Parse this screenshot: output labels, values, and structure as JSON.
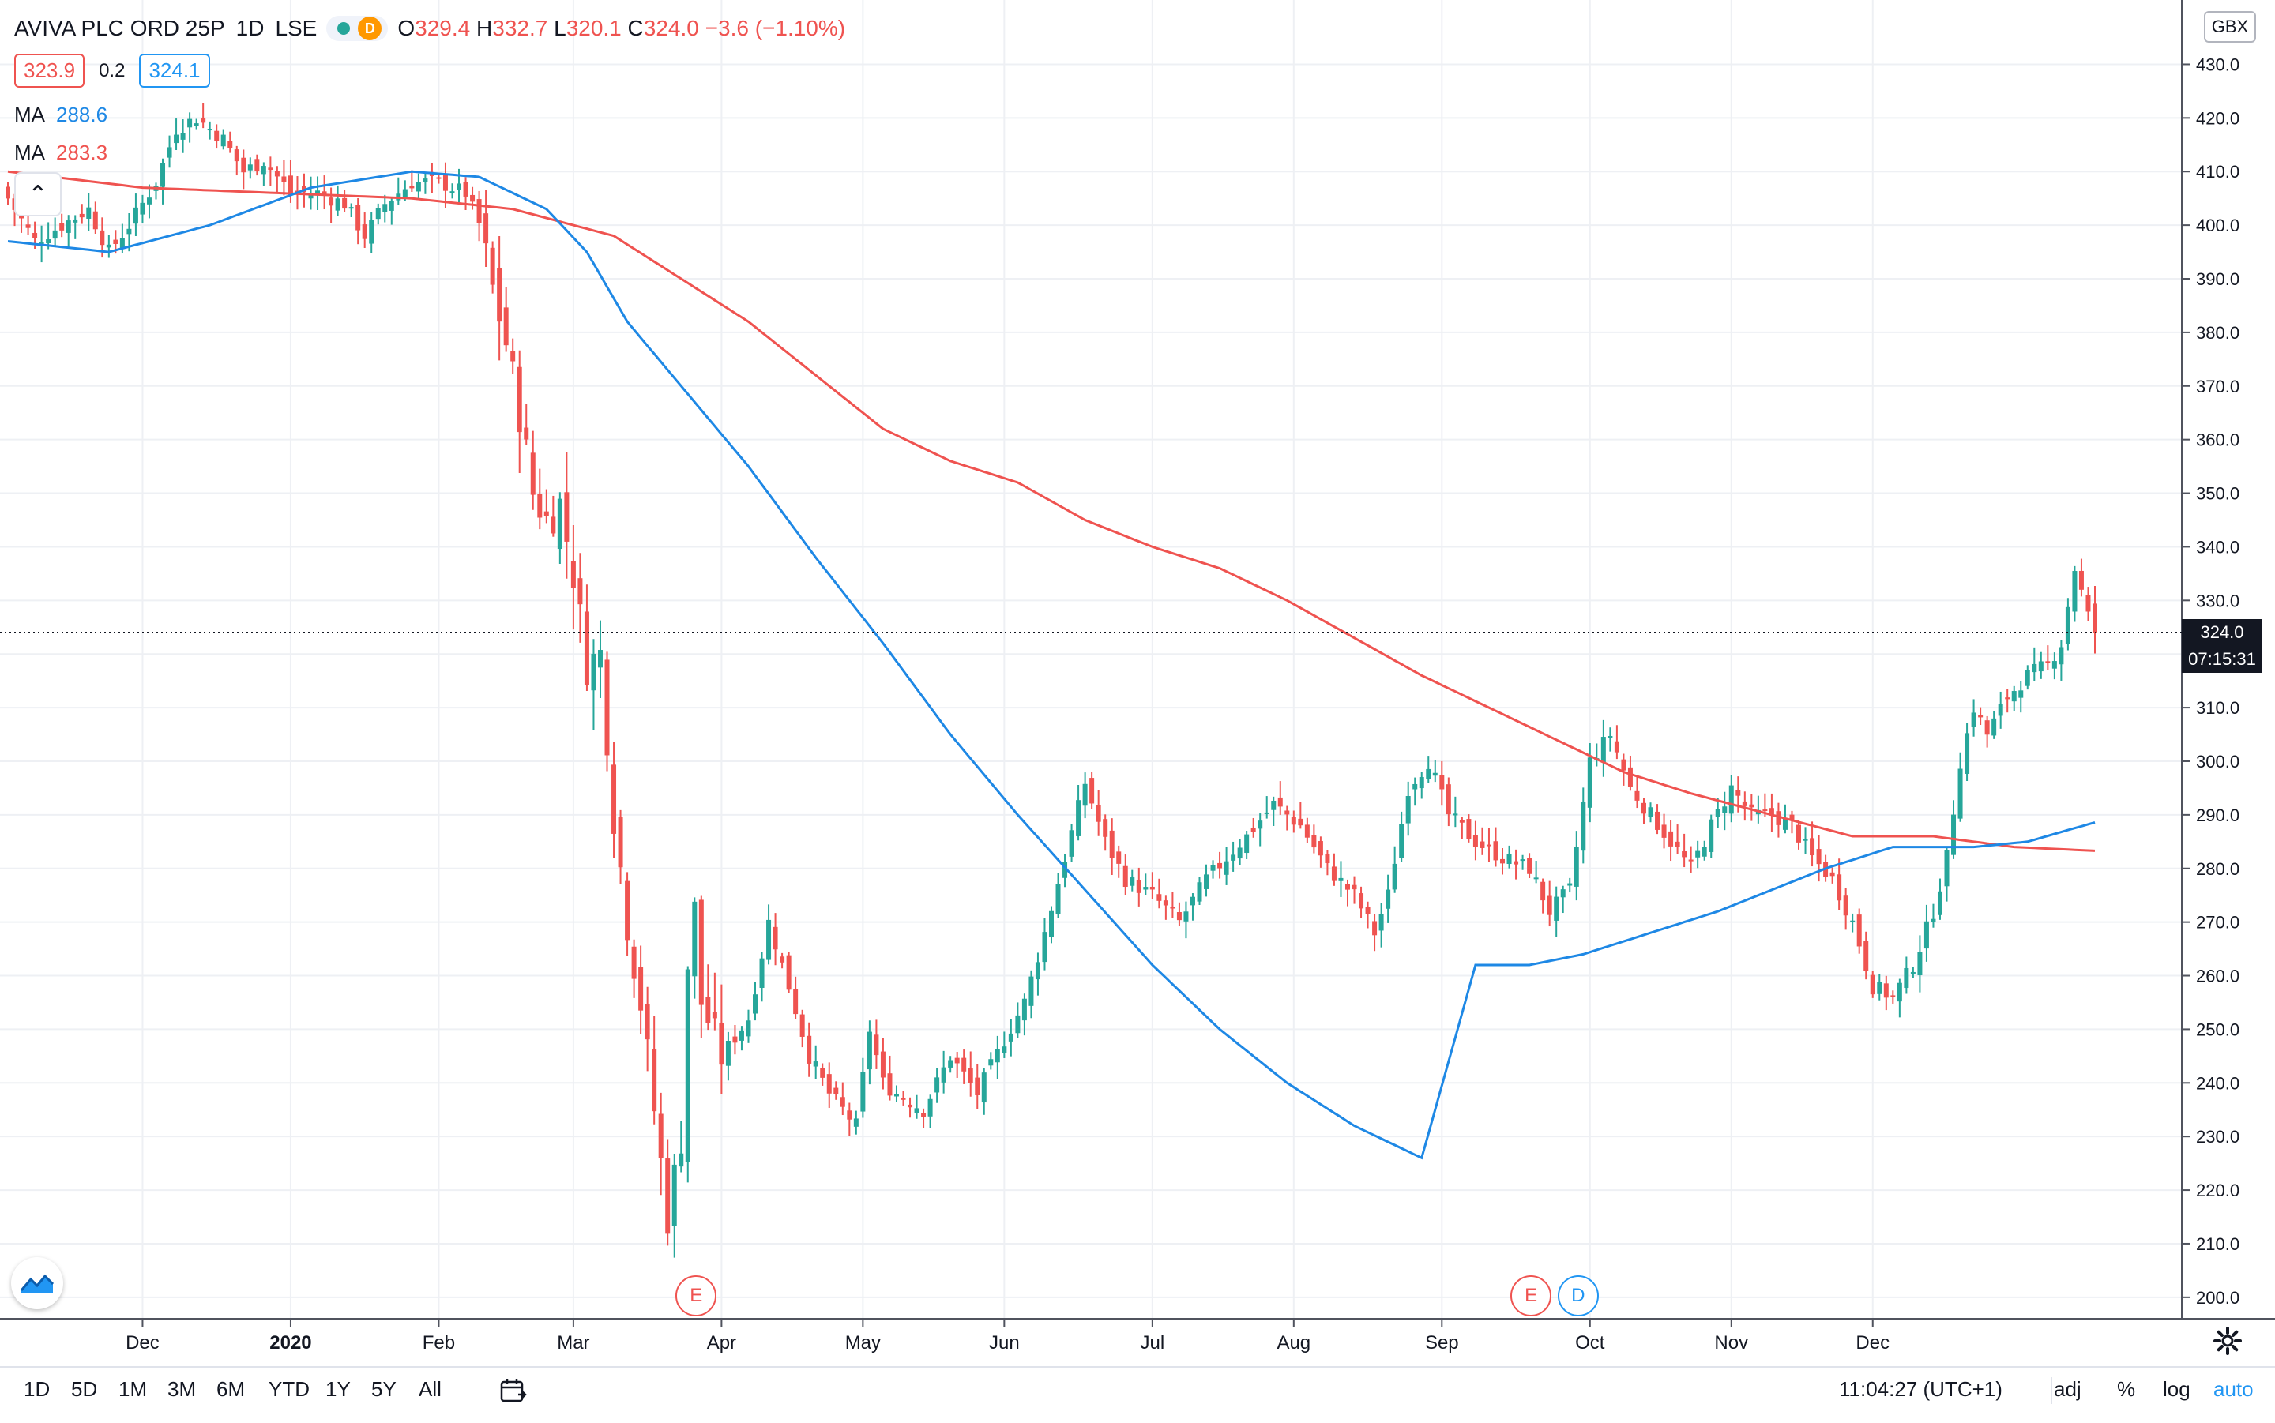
{
  "header": {
    "symbol": "AVIVA PLC ORD 25P",
    "interval": "1D",
    "exchange": "LSE",
    "delay_badge": "D",
    "open_label": "O",
    "open": "329.4",
    "high_label": "H",
    "high": "332.7",
    "low_label": "L",
    "low": "320.1",
    "close_label": "C",
    "close": "324.0",
    "change": "−3.6 (−1.10%)"
  },
  "quotes": {
    "bid": "323.9",
    "spread": "0.2",
    "ask": "324.1"
  },
  "indicators": [
    {
      "label": "MA",
      "value": "288.6",
      "color": "#1e88e5"
    },
    {
      "label": "MA",
      "value": "283.3",
      "color": "#ef5350"
    }
  ],
  "currency": "GBX",
  "price_tag": {
    "value": "324.0",
    "countdown": "07:15:31"
  },
  "events": [
    {
      "label": "E",
      "color": "#ef5350",
      "date_index": 102
    },
    {
      "label": "E",
      "color": "#ef5350",
      "date_index": 226
    },
    {
      "label": "D",
      "color": "#2196f3",
      "date_index": 233
    }
  ],
  "bottom": {
    "timeframes": [
      "1D",
      "5D",
      "1M",
      "3M",
      "6M",
      "YTD",
      "1Y",
      "5Y",
      "All"
    ],
    "time": "11:04:27 (UTC+1)",
    "adj": "adj",
    "percent": "%",
    "log": "log",
    "auto": "auto"
  },
  "colors": {
    "up": "#26a69a",
    "down": "#ef5350",
    "ma_fast": "#1e88e5",
    "ma_slow": "#ef5350",
    "grid": "#eef0f4"
  },
  "icons": {
    "collapse": "chevron-up-icon",
    "logo": "tradingview-logo-icon",
    "settings": "gear-icon",
    "compare": "calendar-range-icon"
  },
  "chart_data": {
    "type": "candlestick",
    "y_ticks": [
      200,
      210,
      220,
      230,
      240,
      250,
      260,
      270,
      280,
      290,
      300,
      310,
      320,
      330,
      340,
      350,
      360,
      370,
      380,
      390,
      400,
      410,
      420,
      430
    ],
    "ylim": [
      196,
      442
    ],
    "x_ticks": [
      {
        "label": "Dec",
        "bold": false
      },
      {
        "label": "2020",
        "bold": true
      },
      {
        "label": "Feb",
        "bold": false
      },
      {
        "label": "Mar",
        "bold": false
      },
      {
        "label": "Apr",
        "bold": false
      },
      {
        "label": "May",
        "bold": false
      },
      {
        "label": "Jun",
        "bold": false
      },
      {
        "label": "Jul",
        "bold": false
      },
      {
        "label": "Aug",
        "bold": false
      },
      {
        "label": "Sep",
        "bold": false
      },
      {
        "label": "Oct",
        "bold": false
      },
      {
        "label": "Nov",
        "bold": false
      },
      {
        "label": "Dec",
        "bold": false
      }
    ],
    "close_anchors": [
      [
        0,
        405
      ],
      [
        4,
        397
      ],
      [
        8,
        400
      ],
      [
        12,
        403
      ],
      [
        15,
        395
      ],
      [
        18,
        400
      ],
      [
        22,
        408
      ],
      [
        25,
        418
      ],
      [
        28,
        420
      ],
      [
        32,
        416
      ],
      [
        35,
        410
      ],
      [
        38,
        412
      ],
      [
        42,
        406
      ],
      [
        46,
        406
      ],
      [
        50,
        404
      ],
      [
        53,
        398
      ],
      [
        56,
        404
      ],
      [
        60,
        408
      ],
      [
        64,
        408
      ],
      [
        68,
        406
      ],
      [
        70,
        400
      ],
      [
        72,
        388
      ],
      [
        74,
        378
      ],
      [
        76,
        365
      ],
      [
        78,
        350
      ],
      [
        80,
        345
      ],
      [
        82,
        348
      ],
      [
        84,
        335
      ],
      [
        86,
        318
      ],
      [
        88,
        320
      ],
      [
        90,
        290
      ],
      [
        92,
        270
      ],
      [
        94,
        255
      ],
      [
        96,
        235
      ],
      [
        98,
        215
      ],
      [
        100,
        230
      ],
      [
        101,
        262
      ],
      [
        102,
        272
      ],
      [
        103,
        255
      ],
      [
        106,
        245
      ],
      [
        110,
        252
      ],
      [
        113,
        270
      ],
      [
        116,
        258
      ],
      [
        119,
        245
      ],
      [
        122,
        238
      ],
      [
        126,
        232
      ],
      [
        128,
        250
      ],
      [
        130,
        240
      ],
      [
        132,
        238
      ],
      [
        136,
        235
      ],
      [
        140,
        245
      ],
      [
        144,
        238
      ],
      [
        148,
        248
      ],
      [
        151,
        255
      ],
      [
        154,
        268
      ],
      [
        157,
        282
      ],
      [
        160,
        296
      ],
      [
        163,
        285
      ],
      [
        166,
        278
      ],
      [
        170,
        275
      ],
      [
        174,
        270
      ],
      [
        178,
        278
      ],
      [
        181,
        282
      ],
      [
        184,
        286
      ],
      [
        188,
        292
      ],
      [
        192,
        288
      ],
      [
        196,
        280
      ],
      [
        200,
        275
      ],
      [
        203,
        268
      ],
      [
        205,
        275
      ],
      [
        208,
        295
      ],
      [
        211,
        300
      ],
      [
        214,
        290
      ],
      [
        218,
        285
      ],
      [
        222,
        282
      ],
      [
        226,
        280
      ],
      [
        229,
        272
      ],
      [
        232,
        276
      ],
      [
        235,
        300
      ],
      [
        238,
        305
      ],
      [
        241,
        295
      ],
      [
        244,
        290
      ],
      [
        247,
        285
      ],
      [
        250,
        280
      ],
      [
        253,
        288
      ],
      [
        256,
        295
      ],
      [
        259,
        290
      ],
      [
        262,
        290
      ],
      [
        265,
        288
      ],
      [
        268,
        282
      ],
      [
        271,
        278
      ],
      [
        274,
        270
      ],
      [
        277,
        258
      ],
      [
        280,
        256
      ],
      [
        283,
        262
      ],
      [
        286,
        272
      ],
      [
        288,
        282
      ],
      [
        290,
        300
      ],
      [
        292,
        310
      ],
      [
        294,
        305
      ],
      [
        297,
        312
      ],
      [
        300,
        316
      ],
      [
        303,
        318
      ],
      [
        305,
        322
      ],
      [
        307,
        336
      ],
      [
        309,
        327
      ],
      [
        310,
        324
      ]
    ],
    "ma_fast": {
      "value": 288.6,
      "anchors": [
        [
          0,
          397
        ],
        [
          15,
          395
        ],
        [
          30,
          400
        ],
        [
          45,
          407
        ],
        [
          60,
          410
        ],
        [
          70,
          409
        ],
        [
          80,
          403
        ],
        [
          86,
          395
        ],
        [
          92,
          382
        ],
        [
          100,
          370
        ],
        [
          110,
          355
        ],
        [
          120,
          338
        ],
        [
          130,
          322
        ],
        [
          140,
          305
        ],
        [
          150,
          290
        ],
        [
          160,
          276
        ],
        [
          170,
          262
        ],
        [
          180,
          250
        ],
        [
          190,
          240
        ],
        [
          200,
          232
        ],
        [
          210,
          226
        ],
        [
          218,
          262
        ],
        [
          226,
          262
        ],
        [
          234,
          264
        ],
        [
          244,
          268
        ],
        [
          254,
          272
        ],
        [
          262,
          276
        ],
        [
          270,
          280
        ],
        [
          280,
          284
        ],
        [
          292,
          284
        ],
        [
          300,
          285
        ],
        [
          310,
          288.6
        ]
      ]
    },
    "ma_slow": {
      "value": 283.3,
      "anchors": [
        [
          0,
          410
        ],
        [
          20,
          407
        ],
        [
          40,
          406
        ],
        [
          60,
          405
        ],
        [
          75,
          403
        ],
        [
          90,
          398
        ],
        [
          100,
          390
        ],
        [
          110,
          382
        ],
        [
          120,
          372
        ],
        [
          130,
          362
        ],
        [
          140,
          356
        ],
        [
          150,
          352
        ],
        [
          160,
          345
        ],
        [
          170,
          340
        ],
        [
          180,
          336
        ],
        [
          190,
          330
        ],
        [
          200,
          323
        ],
        [
          210,
          316
        ],
        [
          220,
          310
        ],
        [
          230,
          304
        ],
        [
          240,
          298
        ],
        [
          250,
          294
        ],
        [
          262,
          290
        ],
        [
          274,
          286
        ],
        [
          286,
          286
        ],
        [
          298,
          284
        ],
        [
          310,
          283.3
        ]
      ]
    }
  }
}
